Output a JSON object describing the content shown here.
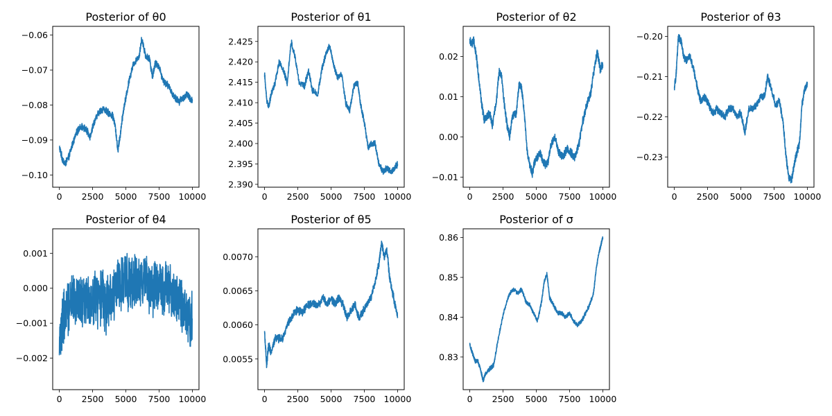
{
  "chart_data": [
    {
      "type": "line",
      "title": "Posterior of θ0",
      "xlim": [
        -500,
        10500
      ],
      "ylim": [
        -0.1035,
        -0.0575
      ],
      "xticks": [
        0,
        2500,
        5000,
        7500,
        10000
      ],
      "xtick_labels": [
        "0",
        "2500",
        "5000",
        "7500",
        "10000"
      ],
      "yticks": [
        -0.1,
        -0.09,
        -0.08,
        -0.07,
        -0.06
      ],
      "ytick_labels": [
        "−0.10",
        "−0.09",
        "−0.08",
        "−0.07",
        "−0.06"
      ],
      "color": "#1f77b4",
      "noise": 0.0012,
      "series": [
        {
          "x": [
            0,
            200,
            400,
            700,
            1000,
            1300,
            1600,
            2000,
            2300,
            2600,
            3000,
            3300,
            3600,
            4000,
            4200,
            4400,
            4600,
            4800,
            5000,
            5300,
            5600,
            6000,
            6200,
            6500,
            6800,
            7000,
            7200,
            7500,
            7800,
            8100,
            8400,
            8700,
            9000,
            9300,
            9600,
            9800,
            10000
          ],
          "y": [
            -0.092,
            -0.095,
            -0.097,
            -0.095,
            -0.091,
            -0.088,
            -0.086,
            -0.087,
            -0.089,
            -0.085,
            -0.082,
            -0.081,
            -0.082,
            -0.083,
            -0.086,
            -0.093,
            -0.088,
            -0.082,
            -0.078,
            -0.072,
            -0.068,
            -0.066,
            -0.061,
            -0.066,
            -0.067,
            -0.072,
            -0.068,
            -0.069,
            -0.073,
            -0.074,
            -0.076,
            -0.078,
            -0.079,
            -0.078,
            -0.077,
            -0.078,
            -0.079
          ]
        }
      ]
    },
    {
      "type": "line",
      "title": "Posterior of θ1",
      "xlim": [
        -500,
        10500
      ],
      "ylim": [
        2.3893,
        2.4287
      ],
      "xticks": [
        0,
        2500,
        5000,
        7500,
        10000
      ],
      "xtick_labels": [
        "0",
        "2500",
        "5000",
        "7500",
        "10000"
      ],
      "yticks": [
        2.39,
        2.395,
        2.4,
        2.405,
        2.41,
        2.415,
        2.42,
        2.425
      ],
      "ytick_labels": [
        "2.390",
        "2.395",
        "2.400",
        "2.405",
        "2.410",
        "2.415",
        "2.420",
        "2.425"
      ],
      "color": "#1f77b4",
      "noise": 0.0009,
      "series": [
        {
          "x": [
            0,
            150,
            300,
            500,
            800,
            1100,
            1400,
            1700,
            2000,
            2300,
            2600,
            3000,
            3300,
            3600,
            4000,
            4300,
            4600,
            4900,
            5200,
            5500,
            5800,
            6100,
            6400,
            6700,
            7000,
            7200,
            7500,
            7800,
            8000,
            8300,
            8600,
            8900,
            9200,
            9500,
            9800,
            10000
          ],
          "y": [
            2.417,
            2.411,
            2.409,
            2.412,
            2.415,
            2.42,
            2.418,
            2.415,
            2.425,
            2.421,
            2.415,
            2.414,
            2.418,
            2.413,
            2.412,
            2.418,
            2.422,
            2.424,
            2.419,
            2.416,
            2.417,
            2.41,
            2.408,
            2.414,
            2.415,
            2.41,
            2.405,
            2.399,
            2.4,
            2.4,
            2.395,
            2.393,
            2.394,
            2.393,
            2.394,
            2.395
          ]
        }
      ]
    },
    {
      "type": "line",
      "title": "Posterior of θ2",
      "xlim": [
        -500,
        10500
      ],
      "ylim": [
        -0.0125,
        0.0275
      ],
      "xticks": [
        0,
        2500,
        5000,
        7500,
        10000
      ],
      "xtick_labels": [
        "0",
        "2500",
        "5000",
        "7500",
        "10000"
      ],
      "yticks": [
        -0.01,
        0,
        0.01,
        0.02
      ],
      "ytick_labels": [
        "−0.01",
        "0.00",
        "0.01",
        "0.02"
      ],
      "color": "#1f77b4",
      "noise": 0.0012,
      "series": [
        {
          "x": [
            0,
            150,
            300,
            500,
            700,
            900,
            1100,
            1300,
            1500,
            1700,
            2000,
            2200,
            2400,
            2600,
            2800,
            3000,
            3200,
            3500,
            3700,
            3900,
            4100,
            4300,
            4500,
            4700,
            4900,
            5100,
            5300,
            5500,
            5700,
            5900,
            6100,
            6400,
            6700,
            7000,
            7300,
            7600,
            7900,
            8200,
            8500,
            8800,
            9100,
            9400,
            9600,
            9800,
            10000
          ],
          "y": [
            0.024,
            0.023,
            0.024,
            0.02,
            0.014,
            0.008,
            0.004,
            0.005,
            0.006,
            0.003,
            0.009,
            0.016,
            0.015,
            0.008,
            0.003,
            0.0,
            0.005,
            0.006,
            0.013,
            0.012,
            0.006,
            -0.003,
            -0.007,
            -0.009,
            -0.006,
            -0.005,
            -0.004,
            -0.006,
            -0.007,
            -0.006,
            -0.002,
            0.0,
            -0.004,
            -0.005,
            -0.003,
            -0.004,
            -0.005,
            -0.002,
            0.004,
            0.008,
            0.011,
            0.018,
            0.021,
            0.017,
            0.018
          ]
        }
      ]
    },
    {
      "type": "line",
      "title": "Posterior of θ3",
      "xlim": [
        -500,
        10500
      ],
      "ylim": [
        -0.2375,
        -0.1975
      ],
      "xticks": [
        0,
        2500,
        5000,
        7500,
        10000
      ],
      "xtick_labels": [
        "0",
        "2500",
        "5000",
        "7500",
        "10000"
      ],
      "yticks": [
        -0.23,
        -0.22,
        -0.21,
        -0.2
      ],
      "ytick_labels": [
        "−0.23",
        "−0.22",
        "−0.21",
        "−0.20"
      ],
      "color": "#1f77b4",
      "noise": 0.0011,
      "series": [
        {
          "x": [
            0,
            150,
            300,
            500,
            700,
            900,
            1200,
            1500,
            1800,
            2000,
            2300,
            2600,
            2900,
            3200,
            3500,
            3800,
            4100,
            4400,
            4700,
            5000,
            5300,
            5600,
            5900,
            6200,
            6500,
            6800,
            7000,
            7300,
            7600,
            7900,
            8200,
            8400,
            8600,
            8800,
            9000,
            9200,
            9400,
            9600,
            9800,
            10000
          ],
          "y": [
            -0.213,
            -0.209,
            -0.2,
            -0.201,
            -0.205,
            -0.206,
            -0.205,
            -0.209,
            -0.214,
            -0.216,
            -0.215,
            -0.217,
            -0.219,
            -0.218,
            -0.219,
            -0.22,
            -0.218,
            -0.218,
            -0.22,
            -0.219,
            -0.224,
            -0.218,
            -0.218,
            -0.217,
            -0.215,
            -0.215,
            -0.21,
            -0.213,
            -0.217,
            -0.216,
            -0.222,
            -0.23,
            -0.235,
            -0.236,
            -0.232,
            -0.229,
            -0.227,
            -0.217,
            -0.213,
            -0.212
          ]
        }
      ]
    },
    {
      "type": "line",
      "title": "Posterior of θ4",
      "xlim": [
        -500,
        10500
      ],
      "ylim": [
        -0.0029,
        0.0017
      ],
      "xticks": [
        0,
        2500,
        5000,
        7500,
        10000
      ],
      "xtick_labels": [
        "0",
        "2500",
        "5000",
        "7500",
        "10000"
      ],
      "yticks": [
        -0.002,
        -0.001,
        0,
        0.001
      ],
      "ytick_labels": [
        "−0.002",
        "−0.001",
        "0.000",
        "0.001"
      ],
      "color": "#1f77b4",
      "noise": 0.0009,
      "series": [
        {
          "x": [
            0,
            300,
            600,
            900,
            1200,
            1500,
            1800,
            2100,
            2400,
            2700,
            3000,
            3300,
            3500,
            3700,
            4000,
            4300,
            4600,
            4900,
            5200,
            5500,
            5800,
            6100,
            6400,
            6700,
            7000,
            7300,
            7600,
            7900,
            8200,
            8500,
            8800,
            9100,
            9400,
            9700,
            10000
          ],
          "y": [
            -0.0015,
            -0.0009,
            -0.0006,
            -0.0004,
            -0.0003,
            -0.0004,
            -0.0002,
            -0.0003,
            -0.0004,
            -0.0003,
            -0.0003,
            -0.0002,
            -0.0006,
            -0.0003,
            -0.0002,
            0.0,
            0.0001,
            0.0002,
            0.0002,
            0.0002,
            0.0001,
            0.0002,
            0.0003,
            0.0001,
            0.0,
            0.0001,
            0.0,
            -0.0001,
            0.0,
            -0.0002,
            -0.0003,
            -0.0004,
            -0.0005,
            -0.0008,
            -0.0009
          ]
        }
      ]
    },
    {
      "type": "line",
      "title": "Posterior of θ5",
      "xlim": [
        -500,
        10500
      ],
      "ylim": [
        0.00505,
        0.00741
      ],
      "xticks": [
        0,
        2500,
        5000,
        7500,
        10000
      ],
      "xtick_labels": [
        "0",
        "2500",
        "5000",
        "7500",
        "10000"
      ],
      "yticks": [
        0.0055,
        0.006,
        0.0065,
        0.007
      ],
      "ytick_labels": [
        "0.0055",
        "0.0060",
        "0.0065",
        "0.0070"
      ],
      "color": "#1f77b4",
      "noise": 7e-05,
      "series": [
        {
          "x": [
            0,
            150,
            300,
            500,
            800,
            1100,
            1400,
            1700,
            2000,
            2300,
            2600,
            2900,
            3200,
            3500,
            3800,
            4100,
            4400,
            4700,
            5000,
            5300,
            5600,
            5900,
            6200,
            6500,
            6800,
            7100,
            7400,
            7700,
            8000,
            8300,
            8600,
            8800,
            9000,
            9200,
            9400,
            9600,
            9800,
            10000
          ],
          "y": [
            0.0059,
            0.0054,
            0.0057,
            0.0056,
            0.0058,
            0.0058,
            0.0058,
            0.006,
            0.0061,
            0.0062,
            0.0062,
            0.0062,
            0.0063,
            0.0063,
            0.0063,
            0.0063,
            0.0064,
            0.0063,
            0.0064,
            0.0063,
            0.0064,
            0.0063,
            0.0061,
            0.0062,
            0.0063,
            0.0061,
            0.0062,
            0.0063,
            0.0064,
            0.0066,
            0.0069,
            0.0072,
            0.007,
            0.0071,
            0.0067,
            0.0065,
            0.0063,
            0.0061
          ]
        }
      ]
    },
    {
      "type": "line",
      "title": "Posterior of σ",
      "xlim": [
        -500,
        10500
      ],
      "ylim": [
        0.8218,
        0.8622
      ],
      "xticks": [
        0,
        2500,
        5000,
        7500,
        10000
      ],
      "xtick_labels": [
        "0",
        "2500",
        "5000",
        "7500",
        "10000"
      ],
      "yticks": [
        0.83,
        0.84,
        0.85,
        0.86
      ],
      "ytick_labels": [
        "0.83",
        "0.84",
        "0.85",
        "0.86"
      ],
      "color": "#1f77b4",
      "noise": 0.0006,
      "series": [
        {
          "x": [
            0,
            200,
            400,
            600,
            800,
            1000,
            1200,
            1500,
            1800,
            2100,
            2400,
            2700,
            3000,
            3300,
            3600,
            3900,
            4200,
            4500,
            4800,
            5100,
            5400,
            5600,
            5800,
            6000,
            6300,
            6600,
            6900,
            7200,
            7500,
            7800,
            8100,
            8400,
            8700,
            9000,
            9300,
            9500,
            9700,
            9850,
            10000
          ],
          "y": [
            0.833,
            0.831,
            0.829,
            0.829,
            0.827,
            0.824,
            0.826,
            0.827,
            0.828,
            0.834,
            0.839,
            0.843,
            0.846,
            0.847,
            0.846,
            0.847,
            0.844,
            0.843,
            0.841,
            0.839,
            0.844,
            0.849,
            0.851,
            0.845,
            0.843,
            0.841,
            0.841,
            0.84,
            0.841,
            0.839,
            0.838,
            0.839,
            0.841,
            0.843,
            0.846,
            0.852,
            0.856,
            0.858,
            0.86
          ]
        }
      ]
    }
  ]
}
